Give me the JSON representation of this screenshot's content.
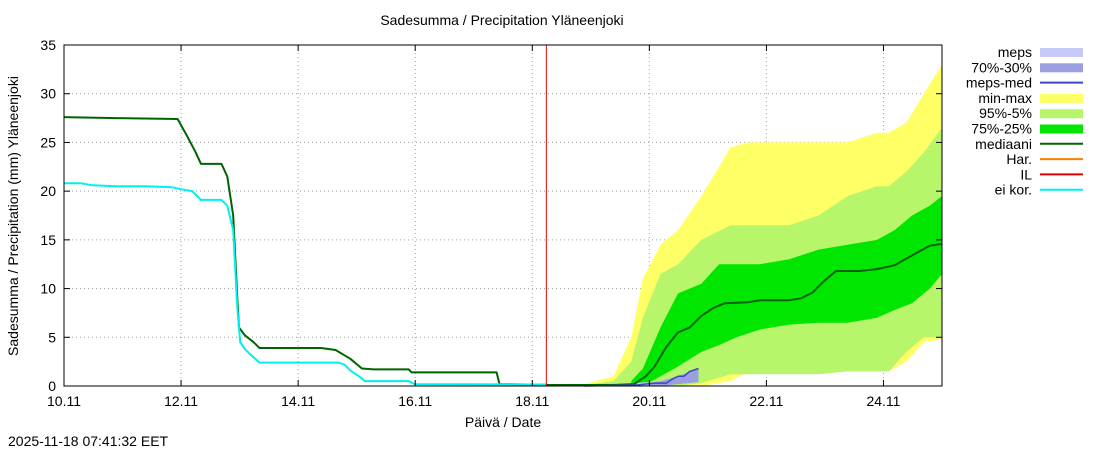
{
  "colors": {
    "meps": "#c6c8f7",
    "meps_70_30": "#9b9ee0",
    "meps_med": "#3a46c8",
    "min_max": "#ffff66",
    "p95_5": "#b7f56b",
    "p75_25": "#00e600",
    "mediaani": "#006400",
    "har": "#ff7f00",
    "il": "#e00000",
    "ei_kor": "#00f0f0",
    "grid": "#a0a0a0"
  },
  "chart_data": {
    "type": "area",
    "title": "Sadesumma / Precipitation  Yläneenjoki",
    "xlabel": "Päivä / Date",
    "ylabel": "Sadesumma / Precipitation (mm)  Yläneenjoki",
    "timestamp": "2025-11-18 07:41:32 EET",
    "xlim": [
      10.11,
      25.11
    ],
    "ylim": [
      0,
      35
    ],
    "xticks": [
      {
        "value": 10.11,
        "label": "10.11"
      },
      {
        "value": 12.11,
        "label": "12.11"
      },
      {
        "value": 14.11,
        "label": "14.11"
      },
      {
        "value": 16.11,
        "label": "16.11"
      },
      {
        "value": 18.11,
        "label": "18.11"
      },
      {
        "value": 20.11,
        "label": "20.11"
      },
      {
        "value": 22.11,
        "label": "22.11"
      },
      {
        "value": 24.11,
        "label": "24.11"
      }
    ],
    "yticks": [
      0,
      5,
      10,
      15,
      20,
      25,
      30,
      35
    ],
    "grid": true,
    "legend": [
      {
        "key": "meps",
        "label": "meps",
        "style": "box"
      },
      {
        "key": "meps_70_30",
        "label": "70%-30%",
        "style": "box"
      },
      {
        "key": "meps_med",
        "label": "meps-med",
        "style": "line"
      },
      {
        "key": "min_max",
        "label": "min-max",
        "style": "box"
      },
      {
        "key": "p95_5",
        "label": "95%-5%",
        "style": "box"
      },
      {
        "key": "p75_25",
        "label": "75%-25%",
        "style": "box"
      },
      {
        "key": "mediaani",
        "label": "mediaani",
        "style": "line"
      },
      {
        "key": "har",
        "label": "Har.",
        "style": "line"
      },
      {
        "key": "il",
        "label": "IL",
        "style": "line"
      },
      {
        "key": "ei_kor",
        "label": "ei kor.",
        "style": "line"
      }
    ],
    "vline": {
      "key": "il",
      "x": 18.35
    },
    "series": [
      {
        "name": "mediaani (observed)",
        "key": "mediaani",
        "kind": "line",
        "points": [
          [
            10.11,
            27.6
          ],
          [
            11.0,
            27.5
          ],
          [
            12.05,
            27.4
          ],
          [
            12.2,
            25.8
          ],
          [
            12.35,
            24.1
          ],
          [
            12.45,
            22.8
          ],
          [
            12.8,
            22.8
          ],
          [
            12.9,
            21.5
          ],
          [
            13.0,
            17.5
          ],
          [
            13.07,
            9.0
          ],
          [
            13.1,
            6.0
          ],
          [
            13.2,
            5.2
          ],
          [
            13.35,
            4.5
          ],
          [
            13.45,
            3.9
          ],
          [
            14.5,
            3.9
          ],
          [
            14.75,
            3.7
          ],
          [
            15.0,
            2.8
          ],
          [
            15.2,
            1.8
          ],
          [
            15.4,
            1.7
          ],
          [
            16.0,
            1.7
          ],
          [
            16.05,
            1.4
          ],
          [
            17.5,
            1.4
          ],
          [
            17.55,
            0.2
          ],
          [
            18.0,
            0.15
          ],
          [
            18.35,
            0.1
          ]
        ]
      },
      {
        "name": "ei kor.",
        "key": "ei_kor",
        "kind": "line",
        "points": [
          [
            10.11,
            20.8
          ],
          [
            10.4,
            20.8
          ],
          [
            10.6,
            20.6
          ],
          [
            11.0,
            20.5
          ],
          [
            11.5,
            20.5
          ],
          [
            11.95,
            20.4
          ],
          [
            12.1,
            20.2
          ],
          [
            12.3,
            20.0
          ],
          [
            12.45,
            19.1
          ],
          [
            12.8,
            19.1
          ],
          [
            12.9,
            18.5
          ],
          [
            13.0,
            16.0
          ],
          [
            13.07,
            8.0
          ],
          [
            13.12,
            4.5
          ],
          [
            13.2,
            3.8
          ],
          [
            13.3,
            3.2
          ],
          [
            13.45,
            2.4
          ],
          [
            14.8,
            2.4
          ],
          [
            14.9,
            2.2
          ],
          [
            15.0,
            1.6
          ],
          [
            15.15,
            1.0
          ],
          [
            15.25,
            0.5
          ],
          [
            16.0,
            0.5
          ],
          [
            16.1,
            0.2
          ],
          [
            18.35,
            0.15
          ]
        ]
      },
      {
        "name": "min-max",
        "key": "min_max",
        "kind": "band",
        "x": [
          19.0,
          19.5,
          19.8,
          20.0,
          20.3,
          20.6,
          21.0,
          21.5,
          21.8,
          22.0,
          22.5,
          23.0,
          23.5,
          24.0,
          24.2,
          24.5,
          24.8,
          25.11
        ],
        "upper": [
          0.2,
          1.0,
          5.0,
          11.0,
          14.5,
          16.0,
          19.5,
          24.5,
          25.0,
          25.0,
          25.0,
          25.0,
          25.0,
          26.0,
          26.0,
          27.0,
          30.0,
          33.0
        ],
        "lower": [
          0,
          0,
          0,
          0,
          0,
          0,
          0,
          0.5,
          1.5,
          1.5,
          1.5,
          1.5,
          1.5,
          1.5,
          1.5,
          2.5,
          4.5,
          4.8
        ]
      },
      {
        "name": "95%-5%",
        "key": "p95_5",
        "kind": "band",
        "x": [
          19.0,
          19.5,
          19.8,
          20.0,
          20.3,
          20.6,
          21.0,
          21.5,
          21.8,
          22.0,
          22.5,
          23.0,
          23.5,
          24.0,
          24.2,
          24.5,
          24.8,
          25.11
        ],
        "upper": [
          0.1,
          0.5,
          2.5,
          7.0,
          11.5,
          12.5,
          15.0,
          16.5,
          16.5,
          16.5,
          16.5,
          17.5,
          19.5,
          20.5,
          20.5,
          22.0,
          24.0,
          26.5
        ],
        "lower": [
          0,
          0,
          0,
          0,
          0,
          0,
          0.3,
          1.2,
          1.2,
          1.2,
          1.2,
          1.2,
          1.5,
          1.5,
          1.5,
          3.5,
          5.0,
          5.0
        ]
      },
      {
        "name": "75%-25%",
        "key": "p75_25",
        "kind": "band",
        "x": [
          19.8,
          20.0,
          20.3,
          20.6,
          21.0,
          21.3,
          21.6,
          22.0,
          22.5,
          23.0,
          23.5,
          24.0,
          24.3,
          24.6,
          24.9,
          25.11
        ],
        "upper": [
          0.5,
          1.8,
          6.0,
          9.5,
          10.5,
          12.5,
          12.5,
          12.5,
          13.0,
          14.0,
          14.5,
          15.0,
          16.0,
          17.5,
          18.5,
          19.5
        ],
        "lower": [
          0,
          0,
          1.0,
          2.0,
          3.5,
          4.2,
          5.0,
          5.8,
          6.3,
          6.5,
          6.5,
          7.0,
          7.8,
          8.5,
          10.0,
          11.5
        ]
      },
      {
        "name": "mediaani (forecast)",
        "key": "mediaani",
        "kind": "line",
        "points": [
          [
            18.35,
            0.1
          ],
          [
            19.5,
            0.1
          ],
          [
            19.85,
            0.2
          ],
          [
            20.05,
            1.0
          ],
          [
            20.2,
            2.0
          ],
          [
            20.4,
            4.0
          ],
          [
            20.6,
            5.5
          ],
          [
            20.8,
            6.0
          ],
          [
            21.0,
            7.2
          ],
          [
            21.2,
            8.0
          ],
          [
            21.4,
            8.5
          ],
          [
            21.8,
            8.6
          ],
          [
            22.0,
            8.8
          ],
          [
            22.5,
            8.8
          ],
          [
            22.7,
            9.0
          ],
          [
            22.9,
            9.6
          ],
          [
            23.1,
            10.8
          ],
          [
            23.3,
            11.8
          ],
          [
            23.7,
            11.8
          ],
          [
            24.0,
            12.0
          ],
          [
            24.3,
            12.4
          ],
          [
            24.6,
            13.4
          ],
          [
            24.9,
            14.4
          ],
          [
            25.11,
            14.6
          ]
        ]
      },
      {
        "name": "meps-med",
        "key": "meps_med",
        "kind": "line",
        "points": [
          [
            19.0,
            0
          ],
          [
            19.9,
            0.1
          ],
          [
            20.2,
            0.3
          ],
          [
            20.4,
            0.3
          ],
          [
            20.5,
            0.7
          ],
          [
            20.6,
            1.0
          ],
          [
            20.7,
            1.0
          ],
          [
            20.8,
            1.5
          ],
          [
            20.95,
            1.8
          ]
        ]
      },
      {
        "name": "meps 70%-30%",
        "key": "meps_70_30",
        "kind": "band",
        "x": [
          19.9,
          20.3,
          20.6,
          20.95
        ],
        "upper": [
          0.15,
          0.5,
          1.0,
          1.8
        ],
        "lower": [
          0,
          0,
          0.2,
          0.4
        ]
      },
      {
        "name": "meps",
        "key": "meps",
        "kind": "band",
        "x": [
          19.0,
          19.4,
          19.8,
          20.1
        ],
        "upper": [
          0,
          0.3,
          0.3,
          0.4
        ],
        "lower": [
          0,
          0,
          0,
          0
        ]
      }
    ]
  }
}
